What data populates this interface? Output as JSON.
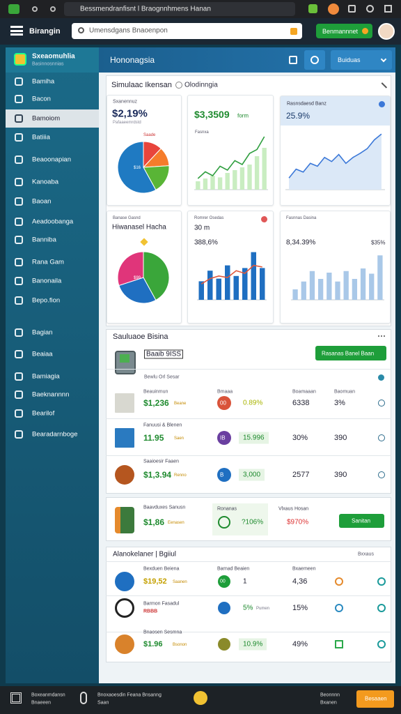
{
  "browser": {
    "tab": "Bessmendranfisnt l Braognnhmens Hanan"
  },
  "header": {
    "brand": "Birangin",
    "search": "Umensdgans Bnaoenpon",
    "button": "Benmannnet"
  },
  "sidebar": {
    "title": "Sxeaomuhlia",
    "subtitle": "Basinnosnnias",
    "items": [
      "Bamiha",
      "Bacon",
      "Bamoiom",
      "Batiiia",
      "Beaoonapian",
      "Kanoaba",
      "Baoan",
      "Aeadoobanga",
      "Banniba",
      "Rana Gam",
      "Banonaila",
      "Bepo.fion",
      "Bagian",
      "Beaiaa",
      "Bamiagia",
      "Baeknannnn",
      "Bearilof",
      "Bearadarnboge"
    ]
  },
  "topbar": {
    "title": "Hononagsia",
    "dropdown": "Buiduas"
  },
  "panel": {
    "title": "Simulaac Ikensan",
    "tag": "Olodinngia",
    "cards": [
      {
        "type": "pie",
        "label": "Sxanennuz",
        "value": "$2,19%",
        "sub": "Pafaaeemrdstd",
        "slice_label": "Saade",
        "inner_label": "$16",
        "values": [
          12,
          12,
          18,
          58
        ],
        "colors": [
          "#e8453c",
          "#f57c2b",
          "#59b536",
          "#1f7ac2"
        ]
      },
      {
        "type": "combo",
        "label": "Fasnxa",
        "value": "$3,3509",
        "unit": "form",
        "ylim": [
          0,
          100
        ],
        "bars": [
          15,
          20,
          25,
          22,
          30,
          35,
          40,
          45,
          60,
          75
        ],
        "line": [
          20,
          32,
          25,
          42,
          35,
          52,
          45,
          65,
          72,
          95
        ],
        "bar_color": "#c9edc1",
        "line_color": "#2e9e3e"
      },
      {
        "type": "area",
        "label": "Rasnsdaesd Banz",
        "value": "25.9%",
        "ylim": [
          0,
          100
        ],
        "line": [
          20,
          35,
          30,
          45,
          40,
          55,
          48,
          60,
          45,
          55,
          62,
          70,
          85,
          95
        ],
        "line_color": "#3b78d8",
        "fill_color": "#dbe8f7"
      },
      {
        "type": "pie",
        "label": "Banase Gasnd",
        "value": "Hiwanasel Hacha",
        "inner_label": "$99",
        "values": [
          42,
          28,
          30
        ],
        "colors": [
          "#3aa63a",
          "#1f6fc1",
          "#e0357a"
        ]
      },
      {
        "type": "combo",
        "label": "Romrer Osedas",
        "value": "30 m",
        "sub": "388,6%",
        "ylim": [
          0,
          100
        ],
        "bars": [
          35,
          55,
          40,
          65,
          45,
          60,
          90,
          60
        ],
        "line": [
          30,
          40,
          45,
          42,
          55,
          50,
          65,
          62
        ],
        "bar_color": "#1f6fc1",
        "line_color": "#e0573a"
      },
      {
        "type": "bar",
        "label": "Fasnnas Dasina",
        "value": "8,34.39%",
        "sub": "$35%",
        "ylim": [
          0,
          100
        ],
        "bars": [
          20,
          35,
          55,
          40,
          52,
          35,
          55,
          40,
          60,
          50,
          85
        ],
        "bar_color": "#a9c8e8"
      }
    ]
  },
  "section": {
    "title": "Sauluaoe Bisina",
    "button": "Rasanas Banel Baan",
    "item": "Baaib 9ISS",
    "subtitle": "Bewlu Orl Sesar",
    "columns": [
      "Beauinmun",
      "Bmaaa",
      "Boamaaan",
      "Baomuan"
    ],
    "rows": [
      {
        "label": "Bauaoduc Buxan",
        "amount": "$1,236",
        "unit": "Beane",
        "badge": "00",
        "change": "0.89%",
        "value": "6338",
        "pct": "3%"
      },
      {
        "label": "Fanuusi & Blenen",
        "amount": "11.95",
        "unit": "Saen",
        "badge": "IB",
        "change": "15.996",
        "value": "30%",
        "pct": "390"
      },
      {
        "label": "Saaioesir Faaen",
        "amount": "$1,3.94",
        "unit": "Renno",
        "badge": "B",
        "change": "3,000",
        "value": "2577",
        "pct": "390"
      }
    ]
  },
  "highlight": {
    "label": "Baavduxes Sanusn",
    "amount": "$1,86",
    "unit": "Eenasen",
    "mid_label": "Ronanas",
    "mid_value": "?106%",
    "right_label": "Vlxaus Hosan",
    "right_value": "$970%",
    "button": "Sanitan"
  },
  "alerts": {
    "title": "Alanokelaner | Bgiiul",
    "action": "Bxxaus",
    "rows": [
      {
        "label": "Bexduen Beiena",
        "amount": "$19,52",
        "unit": "Saanen",
        "col_label": "Barnad Beaien",
        "badge": "00",
        "change": "1",
        "right_label": "Bxaemeen",
        "value": "4,36"
      },
      {
        "label": "Barmon Fasadul",
        "amount": "RBBB",
        "change": "5%",
        "unit": "Pumen",
        "value": "15%"
      },
      {
        "label": "Bnaosen Sesmna",
        "amount": "$1.96",
        "unit": "Bsonon",
        "change": "10.9%",
        "value": "49%"
      }
    ]
  },
  "footer": {
    "left": [
      "Boxeanmdansn",
      "Bnaeeen"
    ],
    "middle": [
      "Bnoxaoesdin Feana Bnsanng",
      "Saan"
    ],
    "right": [
      "Beonnnn",
      "Bxanen"
    ],
    "button": "Besaaen"
  }
}
